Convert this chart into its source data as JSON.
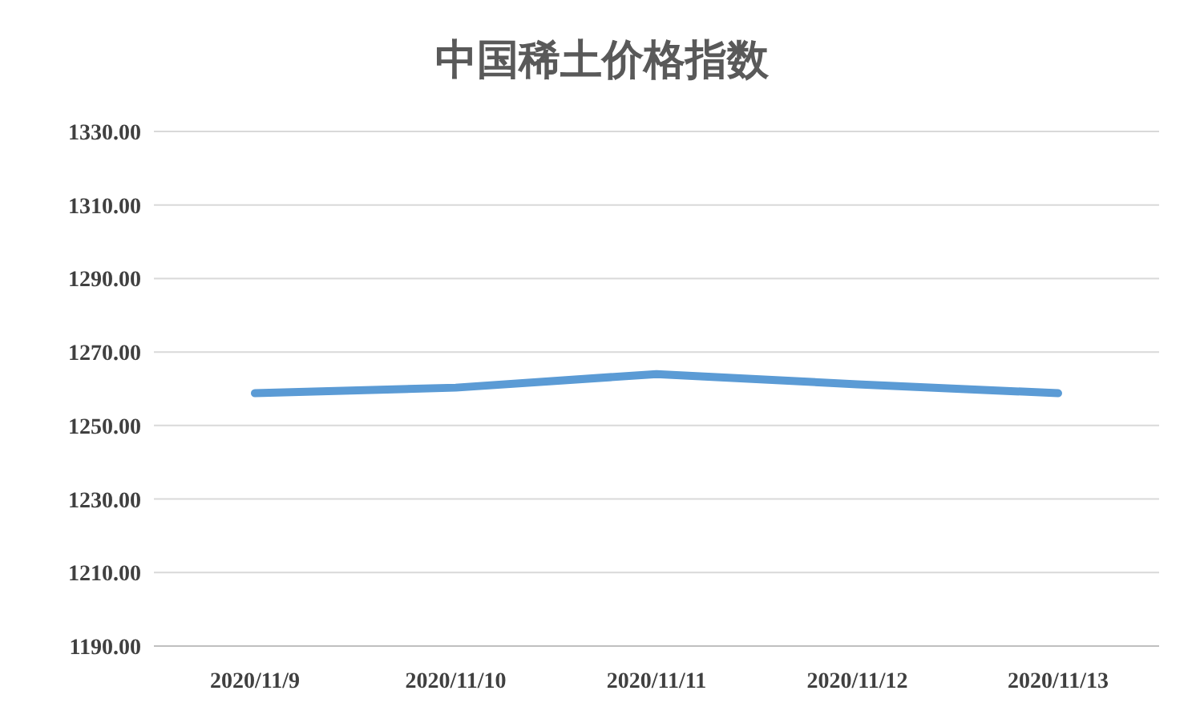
{
  "chart_data": {
    "type": "line",
    "title": "中国稀土价格指数",
    "categories": [
      "2020/11/9",
      "2020/11/10",
      "2020/11/11",
      "2020/11/12",
      "2020/11/13"
    ],
    "series": [
      {
        "color": "#5b9bd5",
        "values": [
          1258.8,
          1260.3,
          1264.0,
          1261.2,
          1258.8
        ]
      }
    ],
    "ylim": [
      1190,
      1330
    ],
    "yticks": [
      {
        "value": 1190,
        "label": "1190.00"
      },
      {
        "value": 1210,
        "label": "1210.00"
      },
      {
        "value": 1230,
        "label": "1230.00"
      },
      {
        "value": 1250,
        "label": "1250.00"
      },
      {
        "value": 1270,
        "label": "1270.00"
      },
      {
        "value": 1290,
        "label": "1290.00"
      },
      {
        "value": 1310,
        "label": "1310.00"
      },
      {
        "value": 1330,
        "label": "1330.00"
      }
    ],
    "grid": "y",
    "legend": false,
    "marker": "none",
    "line_style": "solid"
  }
}
